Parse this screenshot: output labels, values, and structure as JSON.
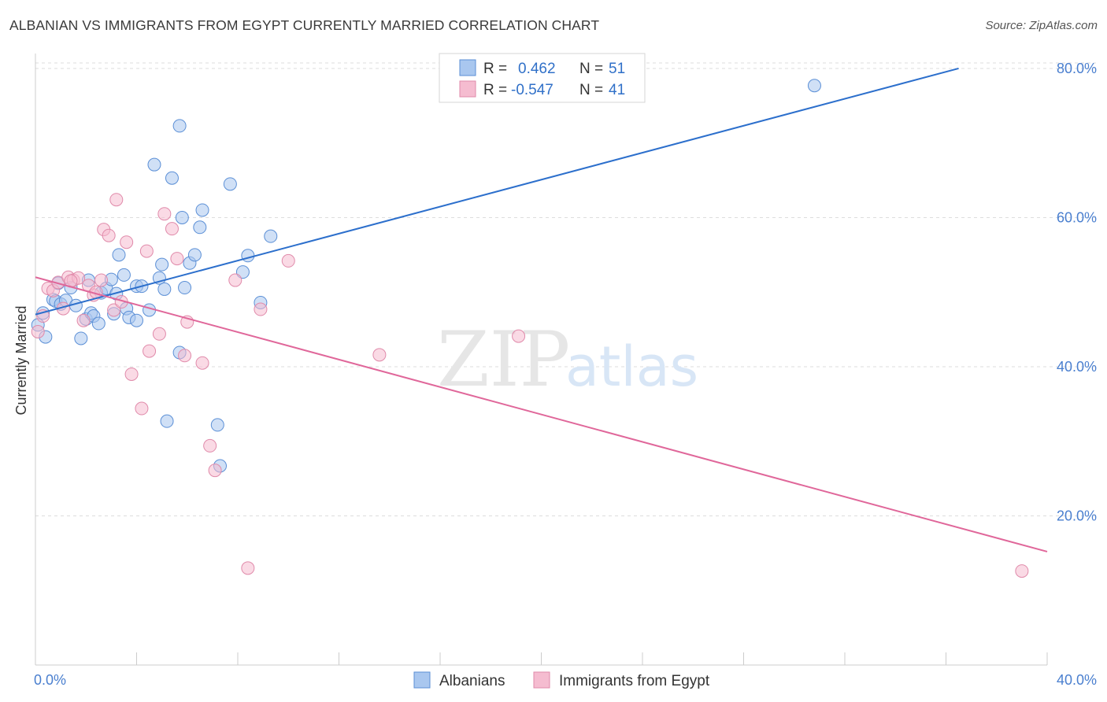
{
  "title": "ALBANIAN VS IMMIGRANTS FROM EGYPT CURRENTLY MARRIED CORRELATION CHART",
  "source": "Source: ZipAtlas.com",
  "watermark": {
    "zip": "ZIP",
    "atlas": "atlas"
  },
  "colors": {
    "blue_fill": "#a9c7ef",
    "blue_stroke": "#5b8fd6",
    "blue_line": "#2c6fcc",
    "pink_fill": "#f5bcd0",
    "pink_stroke": "#e08aaa",
    "pink_line": "#e0679a",
    "grid": "#dddddd",
    "tick_text": "#4a7fcf"
  },
  "legend_box": {
    "rows": [
      {
        "r_label": "R =",
        "r_value": "0.462",
        "n_label": "N =",
        "n_value": "51",
        "series": "blue"
      },
      {
        "r_label": "R =",
        "r_value": "-0.547",
        "n_label": "N =",
        "n_value": "41",
        "series": "pink"
      }
    ]
  },
  "chart_data": {
    "type": "scatter",
    "title": "ALBANIAN VS IMMIGRANTS FROM EGYPT CURRENTLY MARRIED CORRELATION CHART",
    "xlabel": "",
    "ylabel": "Currently Married",
    "xlim": [
      0,
      40
    ],
    "ylim": [
      0,
      82
    ],
    "x_tick_labels": [
      "0.0%",
      "40.0%"
    ],
    "y_ticks": [
      20,
      40,
      60,
      80
    ],
    "y_tick_labels": [
      "20.0%",
      "40.0%",
      "60.0%",
      "80.0%"
    ],
    "grid": true,
    "legend_placement": "bottom-center",
    "series": [
      {
        "name": "Albanians",
        "color": "#a9c7ef",
        "trend": {
          "x": [
            0.0,
            36.5
          ],
          "y": [
            47.0,
            80.0
          ]
        },
        "points": [
          [
            0.3,
            47.2
          ],
          [
            0.4,
            44.0
          ],
          [
            0.7,
            49.0
          ],
          [
            0.8,
            48.8
          ],
          [
            0.9,
            51.2
          ],
          [
            1.0,
            48.4
          ],
          [
            1.2,
            48.9
          ],
          [
            1.4,
            50.6
          ],
          [
            1.6,
            48.2
          ],
          [
            1.8,
            43.8
          ],
          [
            2.0,
            46.4
          ],
          [
            2.1,
            51.6
          ],
          [
            2.2,
            47.2
          ],
          [
            2.3,
            46.8
          ],
          [
            2.5,
            45.8
          ],
          [
            2.6,
            49.9
          ],
          [
            2.8,
            50.5
          ],
          [
            3.0,
            51.7
          ],
          [
            3.2,
            49.8
          ],
          [
            3.3,
            55.0
          ],
          [
            3.5,
            52.3
          ],
          [
            3.6,
            47.8
          ],
          [
            3.7,
            46.6
          ],
          [
            4.0,
            46.2
          ],
          [
            4.0,
            50.8
          ],
          [
            4.2,
            50.8
          ],
          [
            4.5,
            47.6
          ],
          [
            4.7,
            67.1
          ],
          [
            4.9,
            51.9
          ],
          [
            5.0,
            53.7
          ],
          [
            5.2,
            32.7
          ],
          [
            5.4,
            65.3
          ],
          [
            5.7,
            72.3
          ],
          [
            5.7,
            41.9
          ],
          [
            5.8,
            60.0
          ],
          [
            5.9,
            50.6
          ],
          [
            6.1,
            53.9
          ],
          [
            6.3,
            55.0
          ],
          [
            6.5,
            58.7
          ],
          [
            6.6,
            61.0
          ],
          [
            7.2,
            32.2
          ],
          [
            7.3,
            26.7
          ],
          [
            7.7,
            64.5
          ],
          [
            8.2,
            52.7
          ],
          [
            8.4,
            54.9
          ],
          [
            8.9,
            48.6
          ],
          [
            9.3,
            57.5
          ],
          [
            30.8,
            77.7
          ],
          [
            0.1,
            45.6
          ],
          [
            3.1,
            47.1
          ],
          [
            5.1,
            50.4
          ]
        ]
      },
      {
        "name": "Immigrants from Egypt",
        "color": "#f5bcd0",
        "trend": {
          "x": [
            0.0,
            40.0
          ],
          "y": [
            52.0,
            15.2
          ]
        },
        "points": [
          [
            0.1,
            44.7
          ],
          [
            0.3,
            46.8
          ],
          [
            0.5,
            50.5
          ],
          [
            0.7,
            50.2
          ],
          [
            0.9,
            51.3
          ],
          [
            1.1,
            47.8
          ],
          [
            1.3,
            52.0
          ],
          [
            1.5,
            51.6
          ],
          [
            1.7,
            51.9
          ],
          [
            1.9,
            46.2
          ],
          [
            2.1,
            50.9
          ],
          [
            2.3,
            49.6
          ],
          [
            2.6,
            51.6
          ],
          [
            2.7,
            58.4
          ],
          [
            2.9,
            57.6
          ],
          [
            3.1,
            47.6
          ],
          [
            3.2,
            62.4
          ],
          [
            3.4,
            48.7
          ],
          [
            3.6,
            56.7
          ],
          [
            3.8,
            39.0
          ],
          [
            4.2,
            34.4
          ],
          [
            4.4,
            55.5
          ],
          [
            4.5,
            42.1
          ],
          [
            4.9,
            44.4
          ],
          [
            5.1,
            60.5
          ],
          [
            5.4,
            58.5
          ],
          [
            5.6,
            54.5
          ],
          [
            5.9,
            41.5
          ],
          [
            6.0,
            46.0
          ],
          [
            6.6,
            40.5
          ],
          [
            6.9,
            29.4
          ],
          [
            7.1,
            26.1
          ],
          [
            7.9,
            51.6
          ],
          [
            8.4,
            13.0
          ],
          [
            8.9,
            47.7
          ],
          [
            10.0,
            54.2
          ],
          [
            13.6,
            41.6
          ],
          [
            19.1,
            44.1
          ],
          [
            39.0,
            12.6
          ],
          [
            1.4,
            51.5
          ],
          [
            2.4,
            50.0
          ]
        ]
      }
    ]
  }
}
